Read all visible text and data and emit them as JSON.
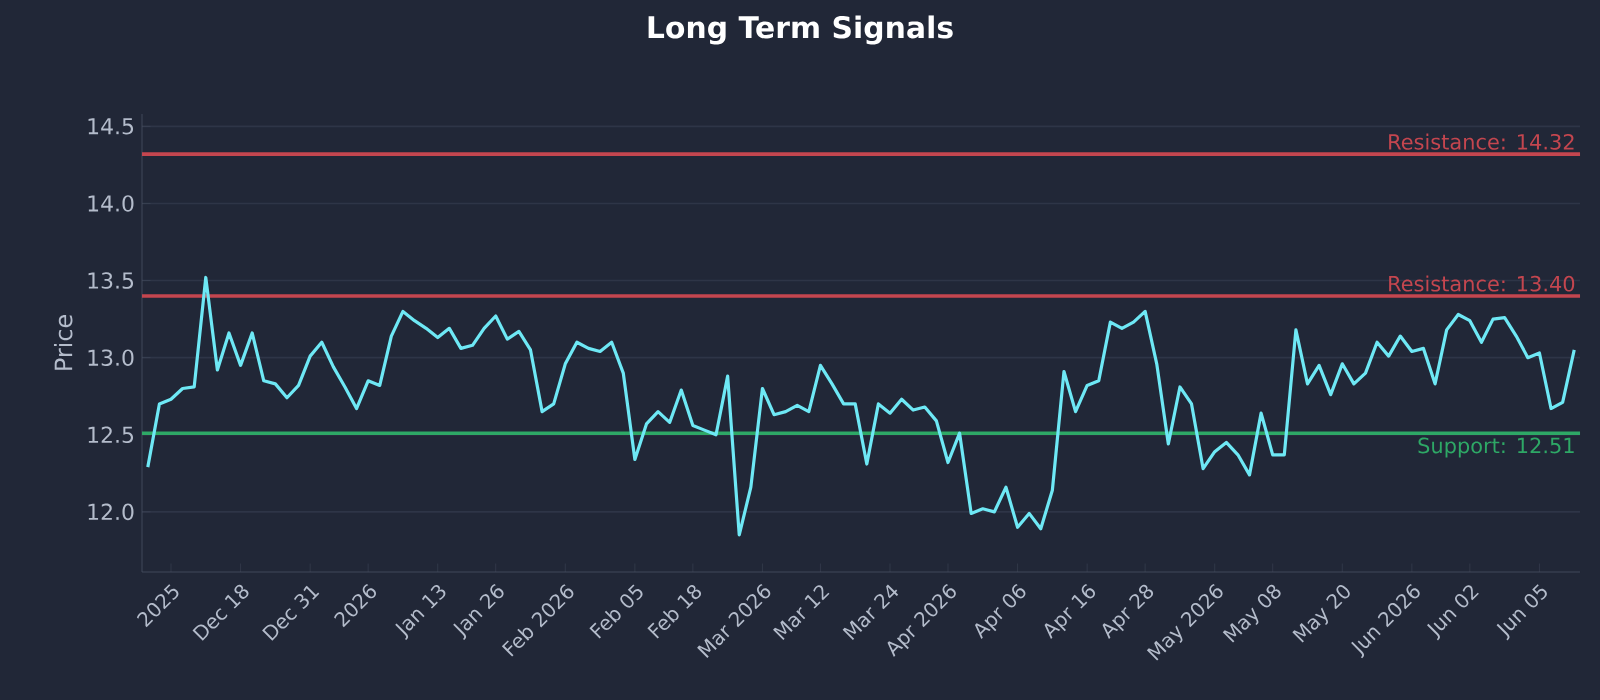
{
  "chart_data": {
    "type": "line",
    "title": "Long Term Signals",
    "ylabel": "Price",
    "categories": [
      null,
      null,
      "2025",
      null,
      null,
      null,
      null,
      null,
      "Dec 18",
      null,
      null,
      null,
      null,
      null,
      "Dec 31",
      null,
      null,
      null,
      null,
      "2026",
      null,
      null,
      null,
      null,
      null,
      "Jan 13",
      null,
      null,
      null,
      null,
      "Jan 26",
      null,
      null,
      null,
      null,
      null,
      "Feb 2026",
      null,
      null,
      null,
      null,
      null,
      "Feb 05",
      null,
      null,
      null,
      null,
      "Feb 18",
      null,
      null,
      null,
      null,
      null,
      "Mar 2026",
      null,
      null,
      null,
      null,
      "Mar 12",
      null,
      null,
      null,
      null,
      null,
      "Mar 24",
      null,
      null,
      null,
      null,
      "Apr 2026",
      null,
      null,
      null,
      null,
      null,
      "Apr 06",
      null,
      null,
      null,
      null,
      null,
      "Apr 16",
      null,
      null,
      null,
      null,
      "Apr 28",
      null,
      null,
      null,
      null,
      null,
      "May 2026",
      null,
      null,
      null,
      null,
      "May 08",
      null,
      null,
      null,
      null,
      null,
      "May 20",
      null,
      null,
      null,
      null,
      null,
      "Jun 2026",
      null,
      null,
      null,
      null,
      "Jun 02",
      null,
      null,
      null,
      null,
      null,
      "Jun 05",
      null,
      null,
      null
    ],
    "series": [
      {
        "color": "#6ee8f5",
        "values": [
          12.29,
          12.7,
          12.73,
          12.8,
          12.81,
          13.52,
          12.92,
          13.16,
          12.95,
          13.16,
          12.85,
          12.83,
          12.74,
          12.82,
          13.01,
          13.1,
          12.94,
          12.81,
          12.67,
          12.85,
          12.82,
          13.14,
          13.3,
          13.24,
          13.19,
          13.13,
          13.19,
          13.06,
          13.08,
          13.19,
          13.27,
          13.12,
          13.17,
          13.05,
          12.65,
          12.7,
          12.96,
          13.1,
          13.06,
          13.04,
          13.1,
          12.9,
          12.34,
          12.57,
          12.65,
          12.58,
          12.79,
          12.56,
          12.53,
          12.5,
          12.88,
          11.85,
          12.16,
          12.8,
          12.63,
          12.65,
          12.69,
          12.65,
          12.95,
          12.83,
          12.7,
          12.7,
          12.31,
          12.7,
          12.64,
          12.73,
          12.66,
          12.68,
          12.59,
          12.32,
          12.51,
          11.99,
          12.02,
          12.0,
          12.16,
          11.9,
          11.99,
          11.89,
          12.14,
          12.91,
          12.65,
          12.82,
          12.85,
          13.23,
          13.19,
          13.23,
          13.3,
          12.96,
          12.44,
          12.81,
          12.7,
          12.28,
          12.39,
          12.45,
          12.37,
          12.24,
          12.64,
          12.37,
          12.37,
          13.18,
          12.83,
          12.95,
          12.76,
          12.96,
          12.83,
          12.9,
          13.1,
          13.01,
          13.14,
          13.04,
          13.06,
          12.83,
          13.18,
          13.28,
          13.24,
          13.1,
          13.25,
          13.26,
          13.14,
          13.0,
          13.03,
          12.67,
          12.71,
          13.05
        ]
      }
    ],
    "ylim": [
      11.61,
      14.58
    ],
    "yticks": [
      {
        "value": 12,
        "label": "12.0"
      },
      12.5,
      {
        "value": 13,
        "label": "13.0"
      },
      13.5,
      {
        "value": 14,
        "label": "14.0"
      },
      14.5
    ],
    "ref_lines": [
      {
        "axis": "y",
        "value": 14.32,
        "label": "Resistance: 14.32",
        "color": "#c4464f"
      },
      {
        "axis": "y",
        "value": 13.4,
        "label": "Resistance: 13.40",
        "color": "#c4464f"
      },
      {
        "axis": "y",
        "value": 12.51,
        "label": "Support: 12.51",
        "color": "#2ea866"
      }
    ],
    "grid": "y",
    "marker": "none",
    "line_style": "solid"
  }
}
